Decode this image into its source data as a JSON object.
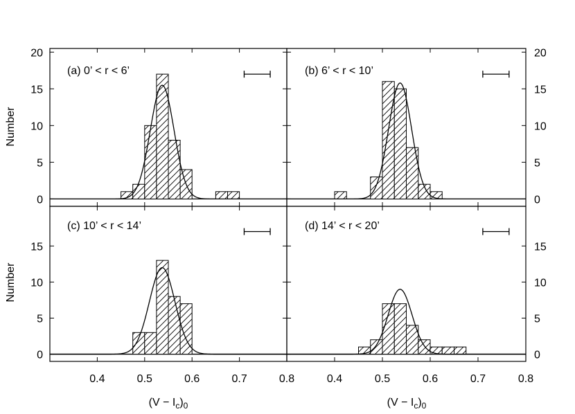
{
  "chart_data": [
    {
      "type": "bar",
      "panel": "a",
      "label": "(a) 0’ < r < 6’",
      "x_label": "",
      "y_label": "Number",
      "xlim": [
        0.3,
        0.8
      ],
      "ylim": [
        -1,
        20.5
      ],
      "bin_width": 0.025,
      "bins": [
        {
          "x0": 0.45,
          "count": 1
        },
        {
          "x0": 0.475,
          "count": 2
        },
        {
          "x0": 0.5,
          "count": 10
        },
        {
          "x0": 0.525,
          "count": 17
        },
        {
          "x0": 0.55,
          "count": 8
        },
        {
          "x0": 0.575,
          "count": 4
        },
        {
          "x0": 0.65,
          "count": 1
        },
        {
          "x0": 0.675,
          "count": 1
        }
      ],
      "gaussian": {
        "amplitude": 15.5,
        "mean": 0.537,
        "sigma": 0.025
      },
      "error_bar": {
        "x_start": 0.71,
        "x_end": 0.765,
        "y": 17
      }
    },
    {
      "type": "bar",
      "panel": "b",
      "label": "(b) 6’ < r < 10’",
      "x_label": "",
      "y_label": "",
      "xlim": [
        0.3,
        0.8
      ],
      "ylim": [
        -1,
        20.5
      ],
      "bin_width": 0.025,
      "bins": [
        {
          "x0": 0.4,
          "count": 1
        },
        {
          "x0": 0.475,
          "count": 3
        },
        {
          "x0": 0.5,
          "count": 16
        },
        {
          "x0": 0.525,
          "count": 15
        },
        {
          "x0": 0.55,
          "count": 7
        },
        {
          "x0": 0.575,
          "count": 2
        },
        {
          "x0": 0.6,
          "count": 1
        }
      ],
      "gaussian": {
        "amplitude": 15.8,
        "mean": 0.537,
        "sigma": 0.024
      },
      "error_bar": {
        "x_start": 0.71,
        "x_end": 0.765,
        "y": 17
      }
    },
    {
      "type": "bar",
      "panel": "c",
      "label": "(c) 10’ < r < 14’",
      "x_label": "(V − I",
      "y_label": "Number",
      "xlim": [
        0.3,
        0.8
      ],
      "ylim": [
        -1,
        20.5
      ],
      "bin_width": 0.025,
      "bins": [
        {
          "x0": 0.475,
          "count": 3
        },
        {
          "x0": 0.5,
          "count": 3
        },
        {
          "x0": 0.525,
          "count": 13
        },
        {
          "x0": 0.55,
          "count": 8
        },
        {
          "x0": 0.575,
          "count": 7
        }
      ],
      "gaussian": {
        "amplitude": 12,
        "mean": 0.537,
        "sigma": 0.027
      },
      "error_bar": {
        "x_start": 0.71,
        "x_end": 0.765,
        "y": 17
      }
    },
    {
      "type": "bar",
      "panel": "d",
      "label": "(d) 14’ < r < 20’",
      "x_label": "(V − I",
      "y_label": "",
      "xlim": [
        0.3,
        0.8
      ],
      "ylim": [
        -1,
        20.5
      ],
      "bin_width": 0.025,
      "bins": [
        {
          "x0": 0.45,
          "count": 1
        },
        {
          "x0": 0.475,
          "count": 2
        },
        {
          "x0": 0.5,
          "count": 7
        },
        {
          "x0": 0.525,
          "count": 7
        },
        {
          "x0": 0.55,
          "count": 4
        },
        {
          "x0": 0.575,
          "count": 2
        },
        {
          "x0": 0.6,
          "count": 1
        },
        {
          "x0": 0.625,
          "count": 1
        },
        {
          "x0": 0.65,
          "count": 1
        }
      ],
      "gaussian": {
        "amplitude": 9,
        "mean": 0.537,
        "sigma": 0.025
      },
      "error_bar": {
        "x_start": 0.71,
        "x_end": 0.765,
        "y": 17
      }
    }
  ],
  "axes": {
    "x_ticks": [
      0.4,
      0.5,
      0.6,
      0.7,
      0.8
    ],
    "x_tick_labels": [
      "0.4",
      "0.5",
      "0.6",
      "0.7",
      "0.8"
    ],
    "y_ticks_top": [
      0,
      5,
      10,
      15,
      20
    ],
    "y_tick_labels_top": [
      "0",
      "5",
      "10",
      "15",
      "20"
    ],
    "y_ticks_bottom": [
      0,
      5,
      10,
      15
    ],
    "y_tick_labels_bottom": [
      "0",
      "5",
      "10",
      "15"
    ],
    "x_title_main": "(V − I",
    "x_title_sub_c": "c",
    "x_title_close": ")",
    "x_title_sub_0": "0",
    "y_title": "Number"
  }
}
